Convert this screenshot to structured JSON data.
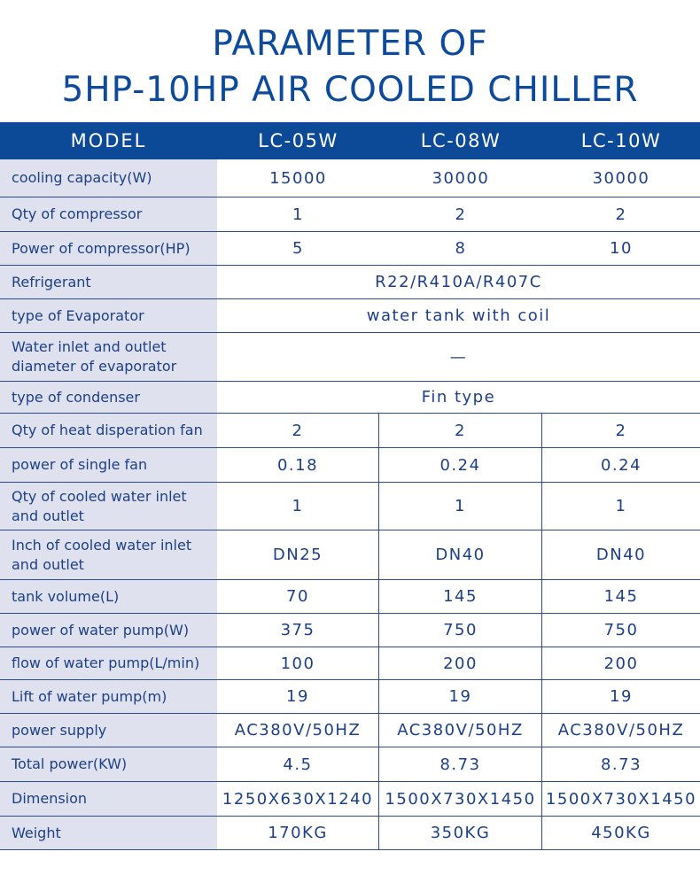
{
  "title": {
    "line1": "PARAMETER OF",
    "line2": "5HP-10HP AIR COOLED CHILLER"
  },
  "header": {
    "label": "MODEL",
    "models": [
      "LC-05W",
      "LC-08W",
      "LC-10W"
    ]
  },
  "rows": [
    {
      "label": "cooling capacity(W)",
      "values": [
        "15000",
        "30000",
        "30000"
      ]
    },
    {
      "label": "Qty of compressor",
      "values": [
        "1",
        "2",
        "2"
      ]
    },
    {
      "label": "Power of compressor(HP)",
      "values": [
        "5",
        "8",
        "10"
      ]
    },
    {
      "label": "Refrigerant",
      "merged": "R22/R410A/R407C"
    },
    {
      "label": "type of Evaporator",
      "merged": "water tank with coil"
    },
    {
      "label": "Water inlet and outlet diameter of evaporator",
      "merged": "—"
    },
    {
      "label": "type of condenser",
      "merged": "Fin type"
    },
    {
      "label": "Qty of heat disperation fan",
      "values": [
        "2",
        "2",
        "2"
      ]
    },
    {
      "label": "power of single fan",
      "values": [
        "0.18",
        "0.24",
        "0.24"
      ]
    },
    {
      "label": "Qty of cooled water inlet and outlet",
      "values": [
        "1",
        "1",
        "1"
      ]
    },
    {
      "label": "Inch of cooled water inlet and outlet",
      "values": [
        "DN25",
        "DN40",
        "DN40"
      ]
    },
    {
      "label": "tank volume(L)",
      "values": [
        "70",
        "145",
        "145"
      ]
    },
    {
      "label": "power of water pump(W)",
      "values": [
        "375",
        "750",
        "750"
      ]
    },
    {
      "label": "flow of water pump(L/min)",
      "values": [
        "100",
        "200",
        "200"
      ]
    },
    {
      "label": "Lift of water pump(m)",
      "values": [
        "19",
        "19",
        "19"
      ]
    },
    {
      "label": "power supply",
      "values": [
        "AC380V/50HZ",
        "AC380V/50HZ",
        "AC380V/50HZ"
      ]
    },
    {
      "label": "Total power(KW)",
      "values": [
        "4.5",
        "8.73",
        "8.73"
      ]
    },
    {
      "label": "Dimension",
      "values": [
        "1250X630X1240",
        "1500X730X1450",
        "1500X730X1450"
      ]
    },
    {
      "label": "Weight",
      "values": [
        "170KG",
        "350KG",
        "450KG"
      ]
    }
  ]
}
